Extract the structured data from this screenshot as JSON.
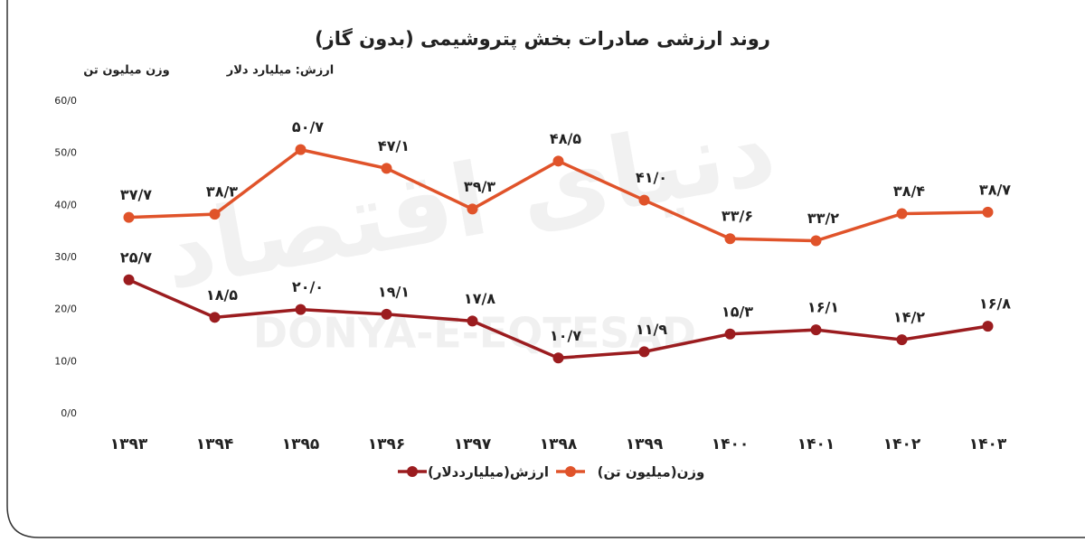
{
  "chart_data": {
    "type": "line",
    "title": "روند ارزشی صادرات بخش پتروشیمی (بدون گاز)",
    "subtitles": [
      "ارزش: میلیارد دلار",
      "وزن میلیون تن"
    ],
    "watermark": [
      "دنیای اقتصاد",
      "DONYA-E-EQTESAD"
    ],
    "categories": [
      "۱۳۹۳",
      "۱۳۹۴",
      "۱۳۹۵",
      "۱۳۹۶",
      "۱۳۹۷",
      "۱۳۹۸",
      "۱۳۹۹",
      "۱۴۰۰",
      "۱۴۰۱",
      "۱۴۰۲",
      "۱۴۰۳"
    ],
    "series": [
      {
        "name": "وزن(میلیون تن)",
        "color": "#e0532a",
        "values": [
          37.7,
          38.3,
          50.7,
          47.1,
          39.3,
          48.5,
          41.0,
          33.6,
          33.2,
          38.4,
          38.7
        ],
        "value_labels": [
          "۳۷/۷",
          "۳۸/۳",
          "۵۰/۷",
          "۴۷/۱",
          "۳۹/۳",
          "۴۸/۵",
          "۴۱/۰",
          "۳۳/۶",
          "۳۳/۲",
          "۳۸/۴",
          "۳۸/۷"
        ]
      },
      {
        "name": "ارزش(میلیارددلار)",
        "color": "#9b1c1f",
        "values": [
          25.7,
          18.5,
          20.0,
          19.1,
          17.8,
          10.7,
          11.9,
          15.3,
          16.1,
          14.2,
          16.8
        ],
        "value_labels": [
          "۲۵/۷",
          "۱۸/۵",
          "۲۰/۰",
          "۱۹/۱",
          "۱۷/۸",
          "۱۰/۷",
          "۱۱/۹",
          "۱۵/۳",
          "۱۶/۱",
          "۱۴/۲",
          "۱۶/۸"
        ]
      }
    ],
    "ylim": [
      0,
      60
    ],
    "yticks": [
      {
        "value": 0,
        "label": "0/0"
      },
      {
        "value": 10,
        "label": "10/0"
      },
      {
        "value": 20,
        "label": "20/0"
      },
      {
        "value": 30,
        "label": "30/0"
      },
      {
        "value": 40,
        "label": "40/0"
      },
      {
        "value": 50,
        "label": "50/0"
      },
      {
        "value": 60,
        "label": "60/0"
      }
    ],
    "grid": false
  }
}
